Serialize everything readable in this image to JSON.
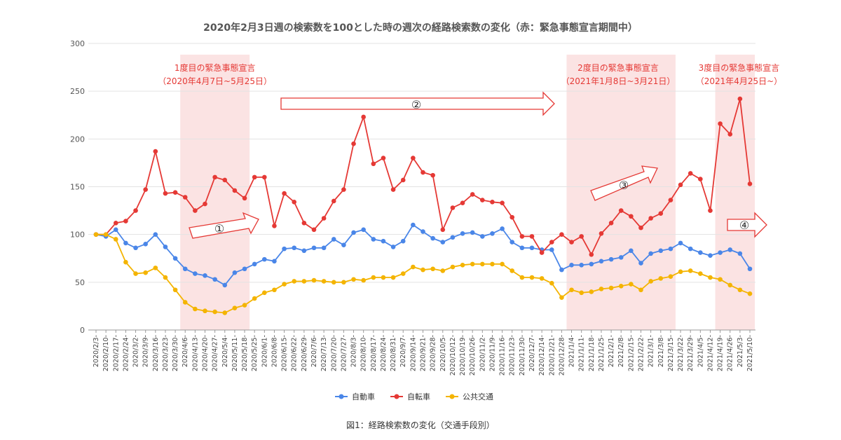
{
  "chart_data": {
    "type": "line",
    "title": "2020年2月3日週の検索数を100とした時の週次の経路検索数の変化（赤：緊急事態宣言期間中）",
    "ylim": [
      0,
      300
    ],
    "yticks": [
      0,
      50,
      100,
      150,
      200,
      250,
      300
    ],
    "grid": true,
    "legend_position": "bottom",
    "categories": [
      "2020/2/3-",
      "2020/2/10-",
      "2020/2/17-",
      "2020/2/24-",
      "2020/3/2-",
      "2020/3/9-",
      "2020/3/16-",
      "2020/3/23-",
      "2020/3/30-",
      "2020/4/6-",
      "2020/4/13-",
      "2020/4/20-",
      "2020/4/27-",
      "2020/5/4-",
      "2020/5/11-",
      "2020/5/18-",
      "2020/5/25-",
      "2020/6/1-",
      "2020/6/8-",
      "2020/6/15-",
      "2020/6/22-",
      "2020/6/29-",
      "2020/7/6-",
      "2020/7/13-",
      "2020/7/20-",
      "2020/7/27-",
      "2020/8/3-",
      "2020/8/10-",
      "2020/8/17-",
      "2020/8/24-",
      "2020/8/31-",
      "2020/9/7-",
      "2020/9/14-",
      "2020/9/21-",
      "2020/9/28-",
      "2020/10/5-",
      "2020/10/12-",
      "2020/10/19-",
      "2020/10/26-",
      "2020/11/2-",
      "2020/11/9-",
      "2020/11/16-",
      "2020/11/23-",
      "2020/11/30-",
      "2020/12/7-",
      "2020/12/14-",
      "2020/12/21-",
      "2020/12/28-",
      "2021/1/4-",
      "2021/1/11-",
      "2021/1/18-",
      "2021/1/25-",
      "2021/2/1-",
      "2021/2/8-",
      "2021/2/15-",
      "2021/2/22-",
      "2021/3/1-",
      "2021/3/8-",
      "2021/3/15-",
      "2021/3/22-",
      "2021/3/29-",
      "2021/4/5-",
      "2021/4/12-",
      "2021/4/19-",
      "2021/4/26-",
      "2021/5/3-",
      "2021/5/10-"
    ],
    "series": [
      {
        "name": "自動車",
        "color": "#4a86e8",
        "values": [
          100,
          98,
          105,
          91,
          86,
          90,
          100,
          87,
          75,
          64,
          59,
          57,
          53,
          47,
          60,
          64,
          69,
          74,
          72,
          85,
          86,
          83,
          86,
          86,
          95,
          89,
          102,
          105,
          95,
          93,
          87,
          93,
          110,
          103,
          96,
          92,
          97,
          101,
          102,
          98,
          101,
          106,
          92,
          86,
          86,
          84,
          84,
          63,
          68,
          68,
          69,
          72,
          74,
          76,
          83,
          70,
          80,
          83,
          85,
          91,
          85,
          81,
          78,
          81,
          84,
          80,
          64
        ]
      },
      {
        "name": "自転車",
        "color": "#e53935",
        "values": [
          100,
          100,
          112,
          114,
          125,
          147,
          187,
          143,
          144,
          139,
          125,
          132,
          160,
          157,
          146,
          138,
          160,
          160,
          109,
          143,
          134,
          112,
          105,
          117,
          135,
          147,
          195,
          223,
          174,
          180,
          147,
          157,
          180,
          165,
          162,
          105,
          128,
          133,
          142,
          136,
          134,
          133,
          118,
          98,
          98,
          81,
          92,
          100,
          92,
          98,
          79,
          101,
          112,
          125,
          119,
          107,
          117,
          122,
          136,
          152,
          164,
          158,
          125,
          216,
          205,
          242,
          153
        ]
      },
      {
        "name": "公共交通",
        "color": "#f4b400",
        "values": [
          100,
          100,
          95,
          71,
          59,
          60,
          65,
          55,
          42,
          29,
          22,
          20,
          19,
          18,
          23,
          26,
          33,
          39,
          42,
          48,
          51,
          51,
          52,
          51,
          50,
          50,
          53,
          52,
          55,
          55,
          55,
          59,
          66,
          63,
          64,
          62,
          66,
          68,
          69,
          69,
          69,
          69,
          62,
          55,
          55,
          54,
          49,
          34,
          42,
          39,
          40,
          43,
          44,
          46,
          48,
          42,
          51,
          54,
          56,
          61,
          62,
          59,
          55,
          53,
          47,
          42,
          38
        ]
      }
    ],
    "shaded_periods": [
      {
        "start_index": 9,
        "end_index": 15,
        "color": "#fbe3e3"
      },
      {
        "start_index": 48,
        "end_index": 58,
        "color": "#fbe3e3"
      },
      {
        "start_index": 63,
        "end_index": 66,
        "color": "#fbe3e3"
      }
    ],
    "annotations": [
      {
        "id": "1",
        "lines": [
          "1度目の緊急事態宣言",
          "（2020年4月7日~5月25日）"
        ]
      },
      {
        "id": "2",
        "lines": [
          "2度目の緊急事態宣言",
          "（2021年1月8日~3月21日）"
        ]
      },
      {
        "id": "3",
        "lines": [
          "3度目の緊急事態宣言",
          "（2021年4月25日~）"
        ]
      }
    ],
    "arrow_labels": [
      "①",
      "②",
      "③",
      "④"
    ]
  },
  "caption": "図1：経路検索数の変化（交通手段別）"
}
